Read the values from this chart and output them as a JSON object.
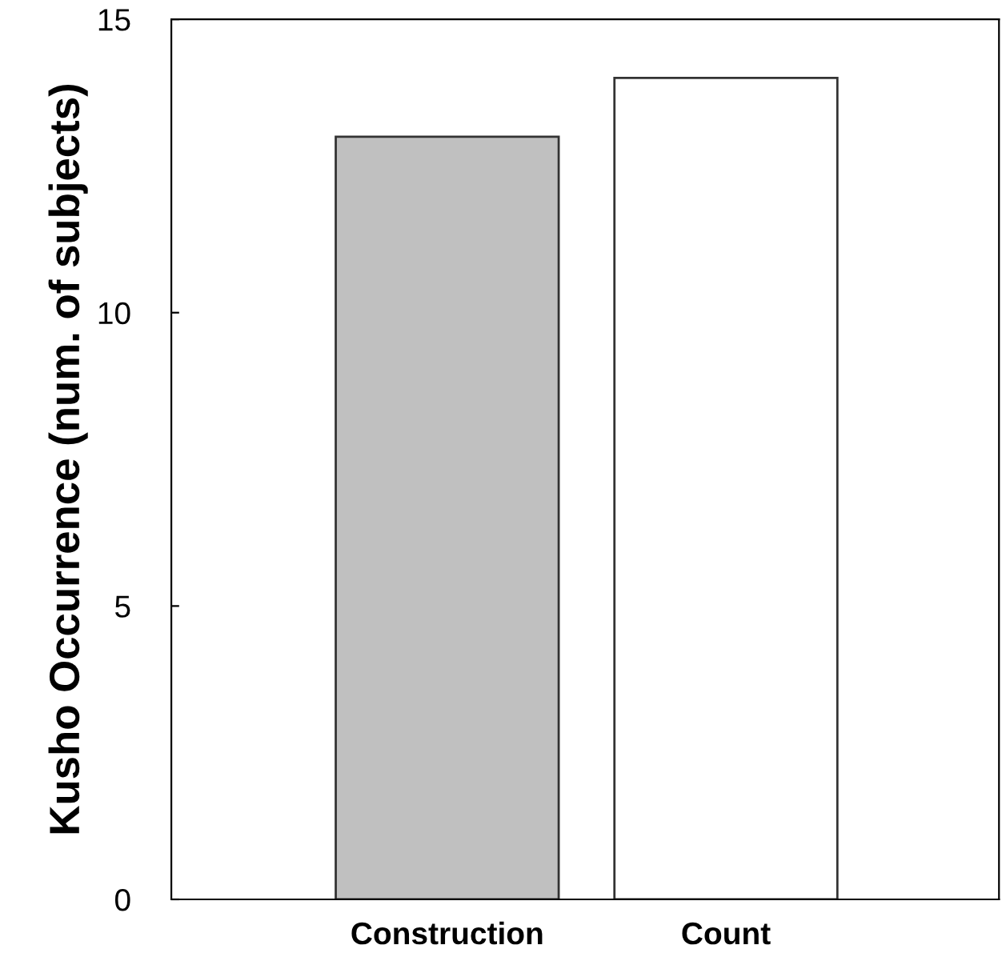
{
  "chart_data": {
    "type": "bar",
    "ylabel": "Kusho Occurrence (num. of subjects)",
    "categories": [
      "Construction",
      "Count"
    ],
    "values": [
      13,
      14
    ],
    "colors": [
      "#c0c0c0",
      "#ffffff"
    ],
    "ylim": [
      0,
      15
    ],
    "yticks": [
      0,
      5,
      10,
      15
    ],
    "grid": false,
    "legend": false
  }
}
